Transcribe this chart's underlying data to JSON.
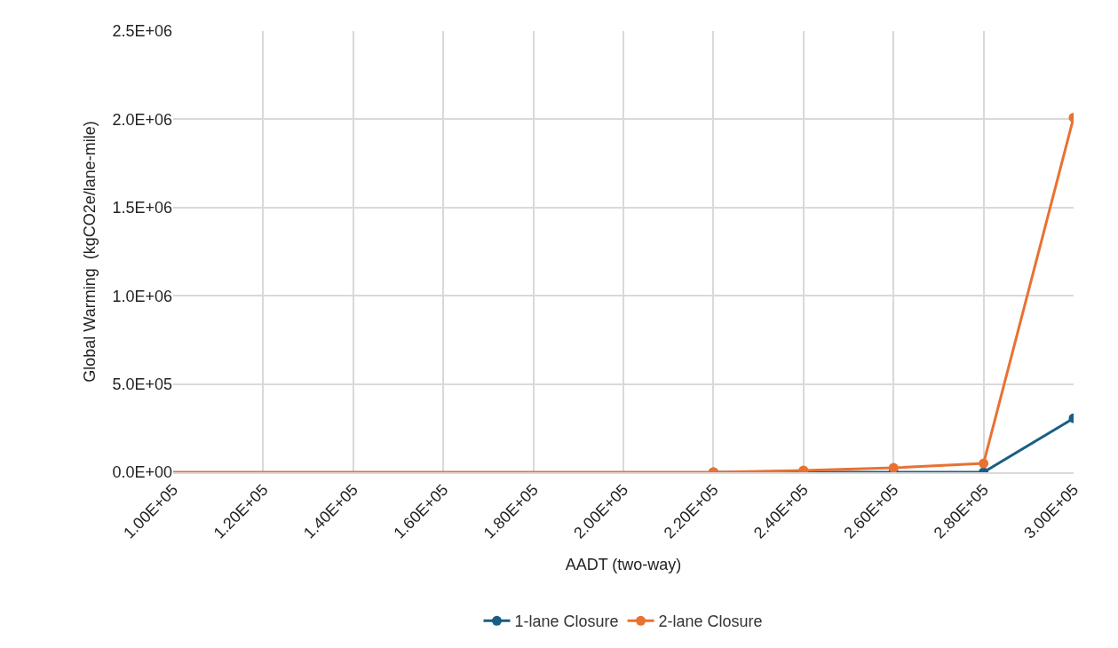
{
  "chart_data": {
    "type": "line",
    "xlabel": "AADT (two-way)",
    "ylabel": "Global Warming  (kgCO2e/lane-mile)",
    "xlim": [
      100000,
      300000
    ],
    "xticks": [
      {
        "value": 100000,
        "label": "1.00E+05"
      },
      {
        "value": 120000,
        "label": "1.20E+05"
      },
      {
        "value": 140000,
        "label": "1.40E+05"
      },
      {
        "value": 160000,
        "label": "1.60E+05"
      },
      {
        "value": 180000,
        "label": "1.80E+05"
      },
      {
        "value": 200000,
        "label": "2.00E+05"
      },
      {
        "value": 220000,
        "label": "2.20E+05"
      },
      {
        "value": 240000,
        "label": "2.40E+05"
      },
      {
        "value": 260000,
        "label": "2.60E+05"
      },
      {
        "value": 280000,
        "label": "2.80E+05"
      },
      {
        "value": 300000,
        "label": "3.00E+05"
      }
    ],
    "ylim": [
      0,
      2500000
    ],
    "yticks": [
      {
        "value": 0,
        "label": "0.0E+00"
      },
      {
        "value": 500000,
        "label": "5.0E+05"
      },
      {
        "value": 1000000,
        "label": "1.0E+06"
      },
      {
        "value": 1500000,
        "label": "1.5E+06"
      },
      {
        "value": 2000000,
        "label": "2.0E+06"
      },
      {
        "value": 2500000,
        "label": "2.5E+06"
      }
    ],
    "grid": true,
    "legend": "bottom",
    "marker": "circle",
    "line_style": "solid",
    "series": [
      {
        "name": "1-lane Closure",
        "color": "#1a5e85",
        "x": [
          220000,
          240000,
          260000,
          280000,
          300000
        ],
        "values": [
          0,
          0,
          0,
          0,
          306000
        ]
      },
      {
        "name": "2-lane Closure",
        "color": "#e97132",
        "x": [
          220000,
          240000,
          260000,
          280000,
          300000
        ],
        "values": [
          0,
          10000,
          25000,
          50000,
          2010000
        ]
      },
      {
        "type": "line",
        "marker": "none",
        "color": "#e97132",
        "x": [
          100000,
          220000
        ],
        "values": [
          0,
          0
        ]
      }
    ]
  }
}
